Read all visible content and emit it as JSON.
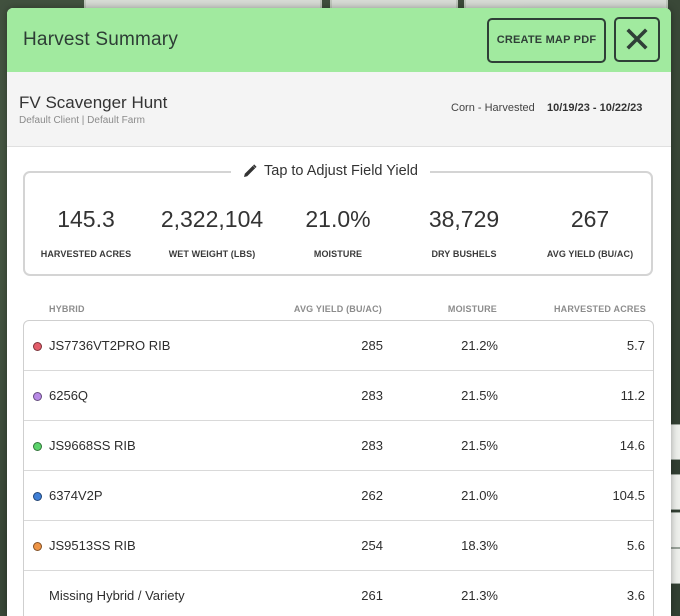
{
  "header": {
    "title": "Harvest Summary",
    "create_pdf_label": "CREATE MAP PDF"
  },
  "field": {
    "name": "FV Scavenger Hunt",
    "client_farm": "Default Client | Default Farm",
    "crop_status": "Corn - Harvested",
    "date_range": "10/19/23 - 10/22/23"
  },
  "adjust_label": "Tap to Adjust Field Yield",
  "stats": [
    {
      "value": "145.3",
      "label": "HARVESTED ACRES"
    },
    {
      "value": "2,322,104",
      "label": "WET WEIGHT (LBS)"
    },
    {
      "value": "21.0%",
      "label": "MOISTURE"
    },
    {
      "value": "38,729",
      "label": "DRY BUSHELS"
    },
    {
      "value": "267",
      "label": "AVG YIELD (BU/AC)"
    }
  ],
  "table": {
    "columns": [
      "HYBRID",
      "AVG YIELD (BU/AC)",
      "MOISTURE",
      "HARVESTED ACRES"
    ],
    "rows": [
      {
        "hybrid": "JS7736VT2PRO RIB",
        "color": "#e35d6a",
        "avg_yield": "285",
        "moisture": "21.2%",
        "acres": "5.7"
      },
      {
        "hybrid": "6256Q",
        "color": "#b88ae6",
        "avg_yield": "283",
        "moisture": "21.5%",
        "acres": "11.2"
      },
      {
        "hybrid": "JS9668SS RIB",
        "color": "#5bd36b",
        "avg_yield": "283",
        "moisture": "21.5%",
        "acres": "14.6"
      },
      {
        "hybrid": "6374V2P",
        "color": "#3f7fd6",
        "avg_yield": "262",
        "moisture": "21.0%",
        "acres": "104.5"
      },
      {
        "hybrid": "JS9513SS RIB",
        "color": "#ee9446",
        "avg_yield": "254",
        "moisture": "18.3%",
        "acres": "5.6"
      },
      {
        "hybrid": "Missing Hybrid / Variety",
        "color": "",
        "avg_yield": "261",
        "moisture": "21.3%",
        "acres": "3.6"
      }
    ]
  },
  "icons": {
    "close": "close-icon",
    "adjust": "pencil-icon"
  },
  "colors": {
    "header_bg": "#a1ea9f",
    "header_text": "#2f3f37"
  }
}
